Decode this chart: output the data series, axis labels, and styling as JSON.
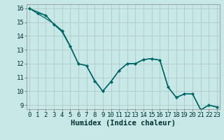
{
  "xlabel": "Humidex (Indice chaleur)",
  "background_color": "#c8e8e8",
  "grid_color": "#b0c8c8",
  "line_color": "#006868",
  "series1_x": [
    0,
    1,
    2,
    3,
    4,
    5,
    6,
    7,
    8,
    9,
    10,
    11,
    12,
    13,
    14,
    15,
    16,
    17,
    18,
    19,
    20,
    21,
    22,
    23
  ],
  "series1_y": [
    16.0,
    15.65,
    15.5,
    14.85,
    14.35,
    13.25,
    12.0,
    11.85,
    10.75,
    10.0,
    10.7,
    11.5,
    12.0,
    12.0,
    12.3,
    12.35,
    12.25,
    10.3,
    9.55,
    9.8,
    9.8,
    8.65,
    9.0,
    8.85
  ],
  "series2_x": [
    0,
    3,
    4,
    5,
    6,
    7,
    8,
    9,
    10,
    11,
    12,
    13,
    14,
    15,
    16,
    17,
    18,
    19,
    20,
    21,
    22,
    23
  ],
  "series2_y": [
    16.0,
    14.9,
    14.4,
    13.3,
    12.0,
    11.85,
    10.8,
    10.0,
    10.7,
    11.5,
    12.0,
    12.0,
    12.3,
    12.35,
    12.25,
    10.3,
    9.55,
    9.8,
    9.8,
    8.65,
    9.0,
    8.85
  ],
  "series3_x": [
    0,
    2,
    3,
    4,
    5,
    6,
    7,
    8,
    9,
    10,
    11,
    12,
    13,
    14,
    15,
    16,
    17,
    18,
    19,
    20,
    21,
    22,
    23
  ],
  "series3_y": [
    16.0,
    15.5,
    14.85,
    14.3,
    13.25,
    12.0,
    11.85,
    10.75,
    10.0,
    10.7,
    11.5,
    12.0,
    12.0,
    12.3,
    12.35,
    12.25,
    10.3,
    9.55,
    9.8,
    9.8,
    8.65,
    9.0,
    8.85
  ],
  "tick_fontsize": 6.5,
  "label_fontsize": 7.5,
  "yticks": [
    9,
    10,
    11,
    12,
    13,
    14,
    15,
    16
  ],
  "xticks": [
    0,
    1,
    2,
    3,
    4,
    5,
    6,
    7,
    8,
    9,
    10,
    11,
    12,
    13,
    14,
    15,
    16,
    17,
    18,
    19,
    20,
    21,
    22,
    23
  ],
  "xlim": [
    -0.3,
    23.3
  ],
  "ylim": [
    8.7,
    16.3
  ]
}
